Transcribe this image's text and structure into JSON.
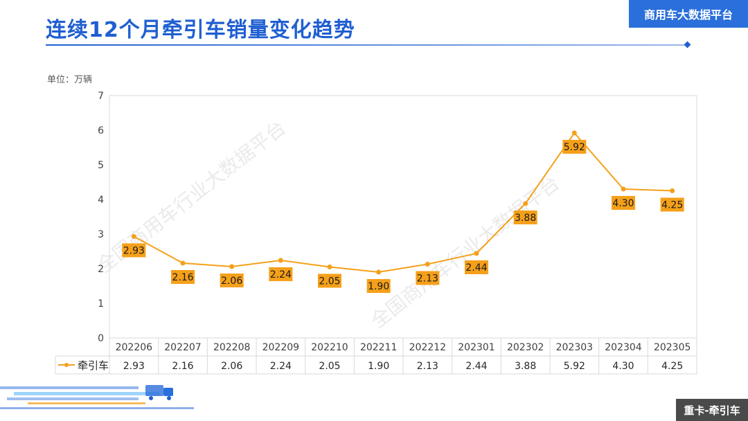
{
  "header": {
    "title": "连续12个月牵引车销量变化趋势",
    "brand": "商用车大数据平台"
  },
  "unit_label": "单位：万辆",
  "watermark": "全国商用车行业大数据平台",
  "footer": {
    "tag": "重卡-牵引车"
  },
  "colors": {
    "accent": "#1f5fd1",
    "series": "#f5a01a",
    "label_bg": "#f5a01a"
  },
  "chart_data": {
    "type": "line",
    "title": "连续12个月牵引车销量变化趋势",
    "ylabel": "单位：万辆",
    "ylim": [
      0,
      7
    ],
    "yticks": [
      "0",
      "1",
      "2",
      "3",
      "4",
      "5",
      "6",
      "7"
    ],
    "categories": [
      "202206",
      "202207",
      "202208",
      "202209",
      "202210",
      "202211",
      "202212",
      "202301",
      "202302",
      "202303",
      "202304",
      "202305"
    ],
    "series": [
      {
        "name": "牵引车",
        "values": [
          2.93,
          2.16,
          2.06,
          2.24,
          2.05,
          1.9,
          2.13,
          2.44,
          3.88,
          5.92,
          4.3,
          4.25
        ],
        "labels": [
          "2.93",
          "2.16",
          "2.06",
          "2.24",
          "2.05",
          "1.90",
          "2.13",
          "2.44",
          "3.88",
          "5.92",
          "4.30",
          "4.25"
        ]
      }
    ],
    "data_table": true,
    "grid": false
  }
}
